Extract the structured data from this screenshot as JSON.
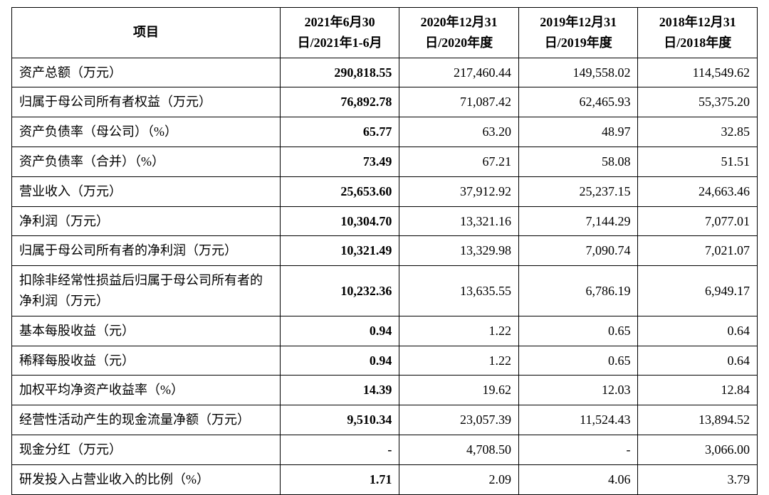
{
  "table": {
    "type": "table",
    "border_color": "#000000",
    "background_color": "#ffffff",
    "text_color": "#000000",
    "header_fontweight": 700,
    "cell_fontsize": 18,
    "column_widths_pct": [
      36,
      16,
      16,
      16,
      16
    ],
    "bold_first_data_column": true,
    "columns": [
      "项目",
      "2021年6月30日/2021年1-6月",
      "2020年12月31日/2020年度",
      "2019年12月31日/2019年度",
      "2018年12月31日/2018年度"
    ],
    "rows": [
      {
        "label": "资产总额（万元）",
        "values": [
          "290,818.55",
          "217,460.44",
          "149,558.02",
          "114,549.62"
        ]
      },
      {
        "label": "归属于母公司所有者权益（万元）",
        "values": [
          "76,892.78",
          "71,087.42",
          "62,465.93",
          "55,375.20"
        ]
      },
      {
        "label": "资产负债率（母公司）（%）",
        "values": [
          "65.77",
          "63.20",
          "48.97",
          "32.85"
        ]
      },
      {
        "label": "资产负债率（合并）（%）",
        "values": [
          "73.49",
          "67.21",
          "58.08",
          "51.51"
        ]
      },
      {
        "label": "营业收入（万元）",
        "values": [
          "25,653.60",
          "37,912.92",
          "25,237.15",
          "24,663.46"
        ]
      },
      {
        "label": "净利润（万元）",
        "values": [
          "10,304.70",
          "13,321.16",
          "7,144.29",
          "7,077.01"
        ]
      },
      {
        "label": "归属于母公司所有者的净利润（万元）",
        "values": [
          "10,321.49",
          "13,329.98",
          "7,090.74",
          "7,021.07"
        ]
      },
      {
        "label": "扣除非经常性损益后归属于母公司所有者的净利润（万元）",
        "values": [
          "10,232.36",
          "13,635.55",
          "6,786.19",
          "6,949.17"
        ]
      },
      {
        "label": "基本每股收益（元）",
        "values": [
          "0.94",
          "1.22",
          "0.65",
          "0.64"
        ]
      },
      {
        "label": "稀释每股收益（元）",
        "values": [
          "0.94",
          "1.22",
          "0.65",
          "0.64"
        ]
      },
      {
        "label": "加权平均净资产收益率（%）",
        "values": [
          "14.39",
          "19.62",
          "12.03",
          "12.84"
        ]
      },
      {
        "label": "经营性活动产生的现金流量净额（万元）",
        "values": [
          "9,510.34",
          "23,057.39",
          "11,524.43",
          "13,894.52"
        ]
      },
      {
        "label": "现金分红（万元）",
        "values": [
          "-",
          "4,708.50",
          "-",
          "3,066.00"
        ]
      },
      {
        "label": "研发投入占营业收入的比例（%）",
        "values": [
          "1.71",
          "2.09",
          "4.06",
          "3.79"
        ]
      }
    ]
  }
}
